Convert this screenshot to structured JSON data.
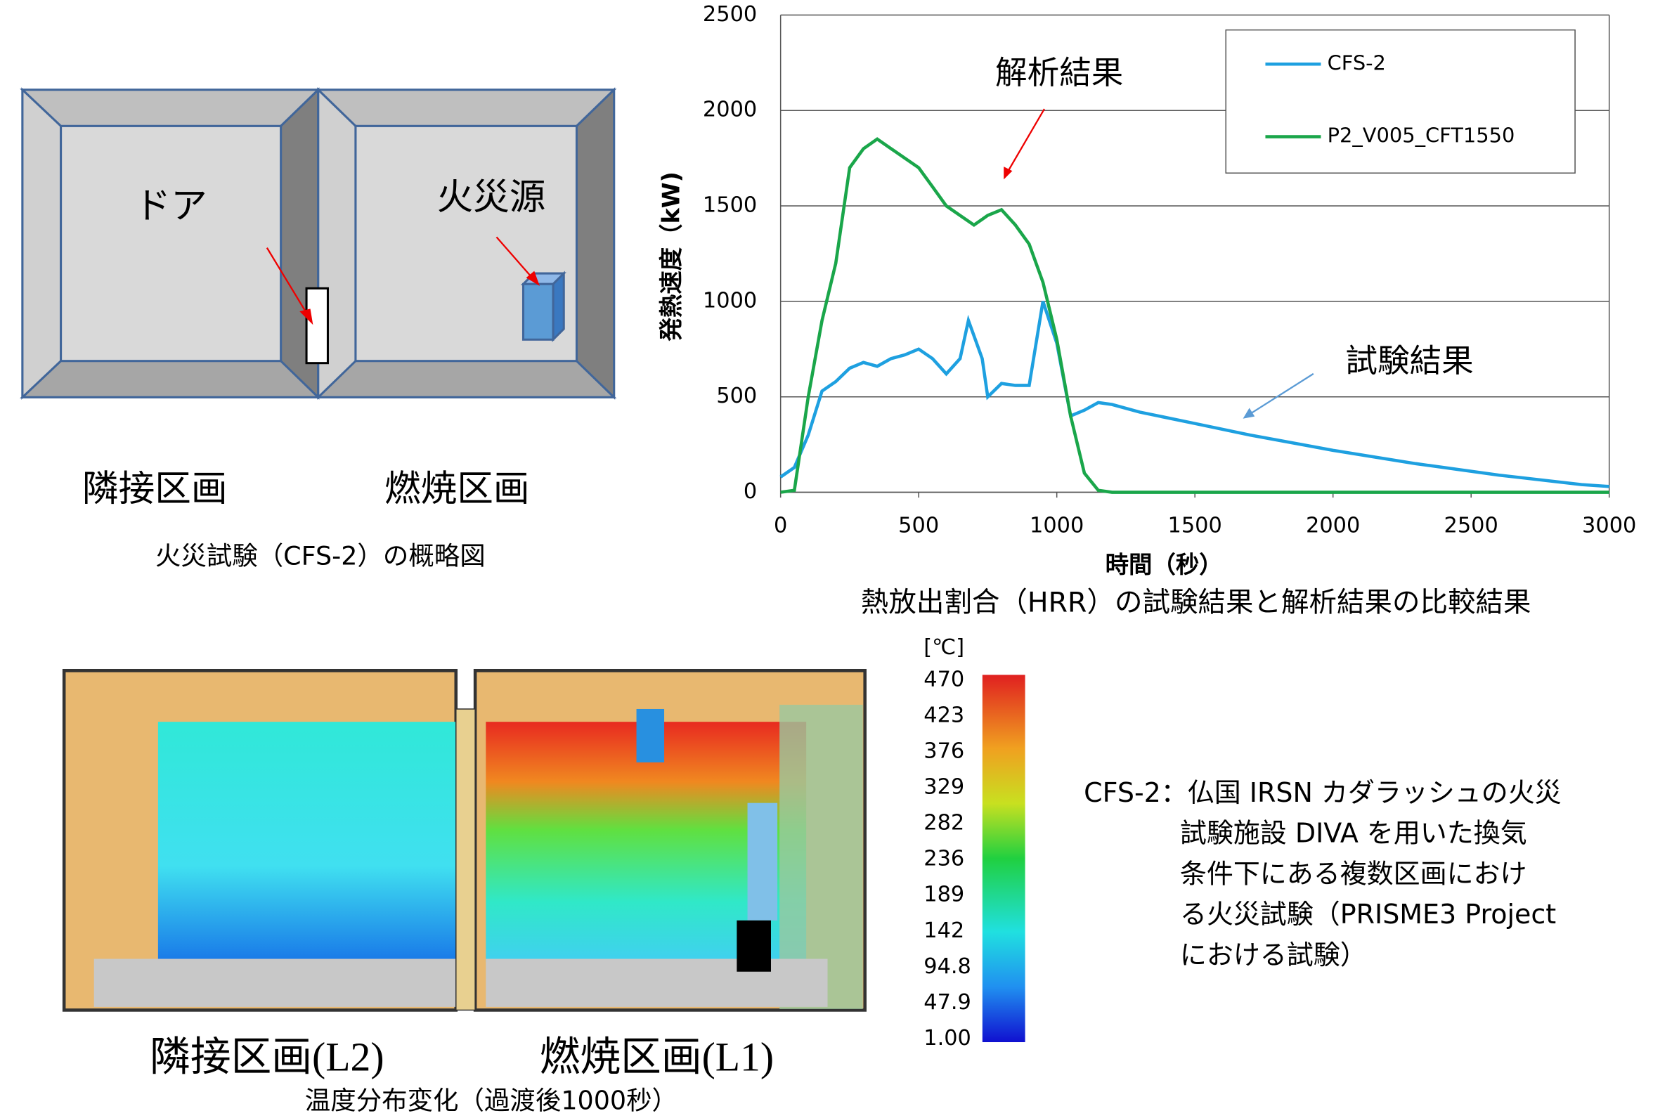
{
  "diagram": {
    "door_label": "ドア",
    "fire_label": "火災源",
    "left_room": "隣接区画",
    "right_room": "燃焼区画",
    "caption": "火災試験（CFS-2）の概略図"
  },
  "chart_data": {
    "type": "line",
    "title": "熱放出割合（HRR）の試験結果と解析結果の比較結果",
    "x_label": "時間（秒）",
    "y_label": "発熱速度（kW)",
    "xlim": [
      0,
      3000
    ],
    "xticks": [
      0,
      500,
      1000,
      1500,
      2000,
      2500,
      3000
    ],
    "ylim": [
      0,
      2500
    ],
    "yticks": [
      0,
      500,
      1000,
      1500,
      2000,
      2500
    ],
    "grid": true,
    "legend": "upper right",
    "annotations": [
      "解析結果",
      "試験結果"
    ],
    "series": [
      {
        "name": "CFS-2",
        "color": "#1ea0e0",
        "x": [
          0,
          50,
          100,
          150,
          200,
          250,
          300,
          350,
          400,
          450,
          500,
          550,
          600,
          650,
          680,
          700,
          730,
          750,
          800,
          850,
          900,
          950,
          1000,
          1050,
          1100,
          1150,
          1200,
          1300,
          1500,
          1700,
          2000,
          2300,
          2600,
          2900,
          3000
        ],
        "values": [
          80,
          130,
          300,
          530,
          580,
          650,
          680,
          660,
          700,
          720,
          750,
          700,
          620,
          700,
          900,
          820,
          700,
          500,
          570,
          560,
          560,
          1000,
          780,
          400,
          430,
          470,
          460,
          420,
          360,
          300,
          220,
          150,
          90,
          40,
          30
        ]
      },
      {
        "name": "P2_V005_CFT1550",
        "color": "#1aa64a",
        "x": [
          0,
          50,
          100,
          150,
          200,
          250,
          300,
          350,
          400,
          450,
          500,
          550,
          600,
          650,
          700,
          750,
          800,
          850,
          900,
          950,
          1000,
          1050,
          1100,
          1150,
          1200,
          3000
        ],
        "values": [
          0,
          10,
          500,
          900,
          1200,
          1700,
          1800,
          1850,
          1800,
          1750,
          1700,
          1600,
          1500,
          1450,
          1400,
          1450,
          1480,
          1400,
          1300,
          1100,
          800,
          400,
          100,
          10,
          0,
          0
        ]
      }
    ]
  },
  "temperature": {
    "unit": "[℃]",
    "scale_labels": [
      "470",
      "423",
      "376",
      "329",
      "282",
      "236",
      "189",
      "142",
      "94.8",
      "47.9",
      "1.00"
    ],
    "left_room": "隣接区画(L2)",
    "right_room": "燃焼区画(L1)",
    "caption": "温度分布変化（過渡後1000秒）"
  },
  "description": [
    "CFS-2：仏国 IRSN カダラッシュの火災",
    "試験施設 DIVA を用いた換気",
    "条件下にある複数区画におけ",
    "る火災試験（PRISME3 Project",
    "における試験）"
  ]
}
